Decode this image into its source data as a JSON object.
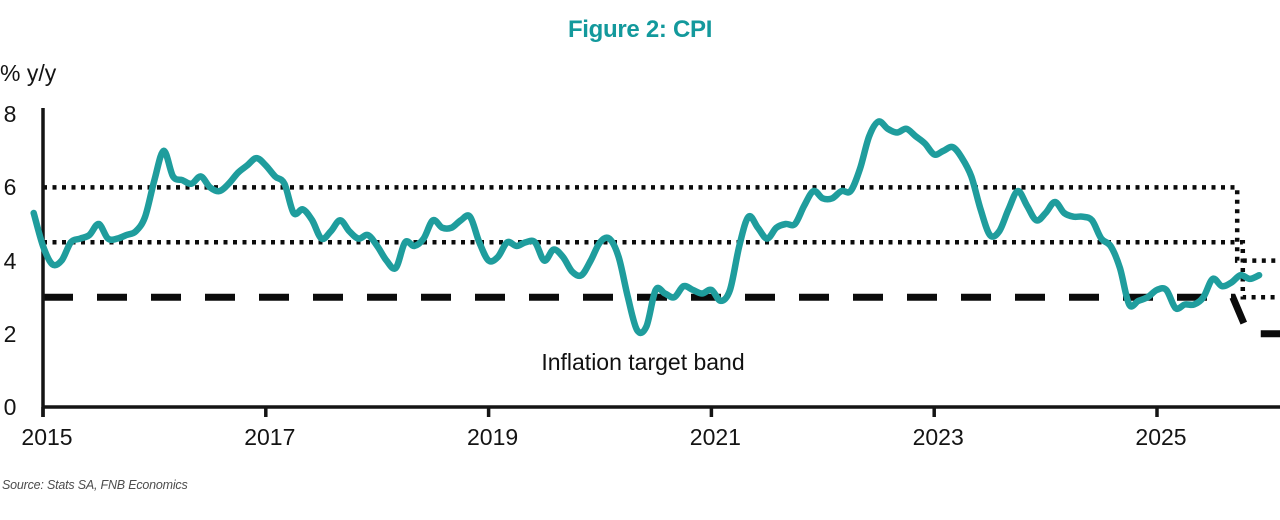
{
  "title": "Figure 2: CPI",
  "y_axis_unit_label": "% y/y",
  "annotation": "Inflation target band",
  "source": "Source: Stats SA, FNB Economics",
  "colors": {
    "teal_line": "#1F9D9D",
    "teal_title": "#13999C",
    "axis_black": "#141414",
    "band_black": "#0B0B0B",
    "source_gray": "#4D4D4D",
    "background": "#FFFFFF"
  },
  "chart_data": {
    "type": "line",
    "title": "Figure 2: CPI",
    "ylabel": "% y/y",
    "xlabel": "",
    "ylim": [
      0,
      8
    ],
    "y_ticks": [
      0,
      2,
      4,
      6,
      8
    ],
    "x_ticks": [
      2015,
      2017,
      2019,
      2021,
      2023,
      2025
    ],
    "grid": false,
    "legend": "none",
    "annotation": "Inflation target band",
    "series": [
      {
        "name": "CPI % y/y",
        "color_key": "teal_line",
        "freq": "monthly",
        "start_year": 2014,
        "start_month": 12,
        "values": [
          5.3,
          4.4,
          3.9,
          4.0,
          4.5,
          4.6,
          4.7,
          5.0,
          4.6,
          4.6,
          4.7,
          4.8,
          5.2,
          6.2,
          7.0,
          6.3,
          6.2,
          6.1,
          6.3,
          6.0,
          5.9,
          6.1,
          6.4,
          6.6,
          6.8,
          6.6,
          6.3,
          6.1,
          5.3,
          5.4,
          5.1,
          4.6,
          4.8,
          5.1,
          4.8,
          4.6,
          4.7,
          4.4,
          4.0,
          3.8,
          4.5,
          4.4,
          4.6,
          5.1,
          4.9,
          4.9,
          5.1,
          5.2,
          4.5,
          4.0,
          4.1,
          4.5,
          4.4,
          4.5,
          4.5,
          4.0,
          4.3,
          4.1,
          3.7,
          3.6,
          4.0,
          4.5,
          4.6,
          4.1,
          3.0,
          2.1,
          2.2,
          3.2,
          3.1,
          3.0,
          3.3,
          3.2,
          3.1,
          3.2,
          2.9,
          3.2,
          4.4,
          5.2,
          4.9,
          4.6,
          4.9,
          5.0,
          5.0,
          5.5,
          5.9,
          5.7,
          5.7,
          5.9,
          5.9,
          6.5,
          7.4,
          7.8,
          7.6,
          7.5,
          7.6,
          7.4,
          7.2,
          6.9,
          7.0,
          7.1,
          6.8,
          6.3,
          5.4,
          4.7,
          4.8,
          5.4,
          5.9,
          5.5,
          5.1,
          5.3,
          5.6,
          5.3,
          5.2,
          5.2,
          5.1,
          4.6,
          4.4,
          3.8,
          2.8,
          2.9,
          3.0,
          3.2,
          3.2,
          2.7,
          2.8,
          2.8,
          3.0,
          3.5,
          3.3,
          3.4,
          3.6,
          3.5,
          3.6
        ]
      }
    ],
    "reference_lines": [
      {
        "name": "inflation-target-band-upper",
        "style": "dotted",
        "segments": [
          {
            "from_year": 2015.0,
            "to_year": 2025.72,
            "value": 6.0
          },
          {
            "from_year": 2025.72,
            "to_year": 2026.12,
            "value": 4.0
          }
        ]
      },
      {
        "name": "inflation-target-band-midpoint",
        "style": "dotted",
        "segments": [
          {
            "from_year": 2015.0,
            "to_year": 2025.77,
            "value": 4.5
          },
          {
            "from_year": 2025.77,
            "to_year": 2026.12,
            "value": 3.0
          }
        ]
      },
      {
        "name": "inflation-target-band-lower",
        "style": "dashed",
        "segments": [
          {
            "from_year": 2015.0,
            "to_year": 2025.68,
            "value": 3.0
          },
          {
            "from_year": 2025.82,
            "to_year": 2026.12,
            "value": 2.0
          }
        ]
      }
    ]
  }
}
